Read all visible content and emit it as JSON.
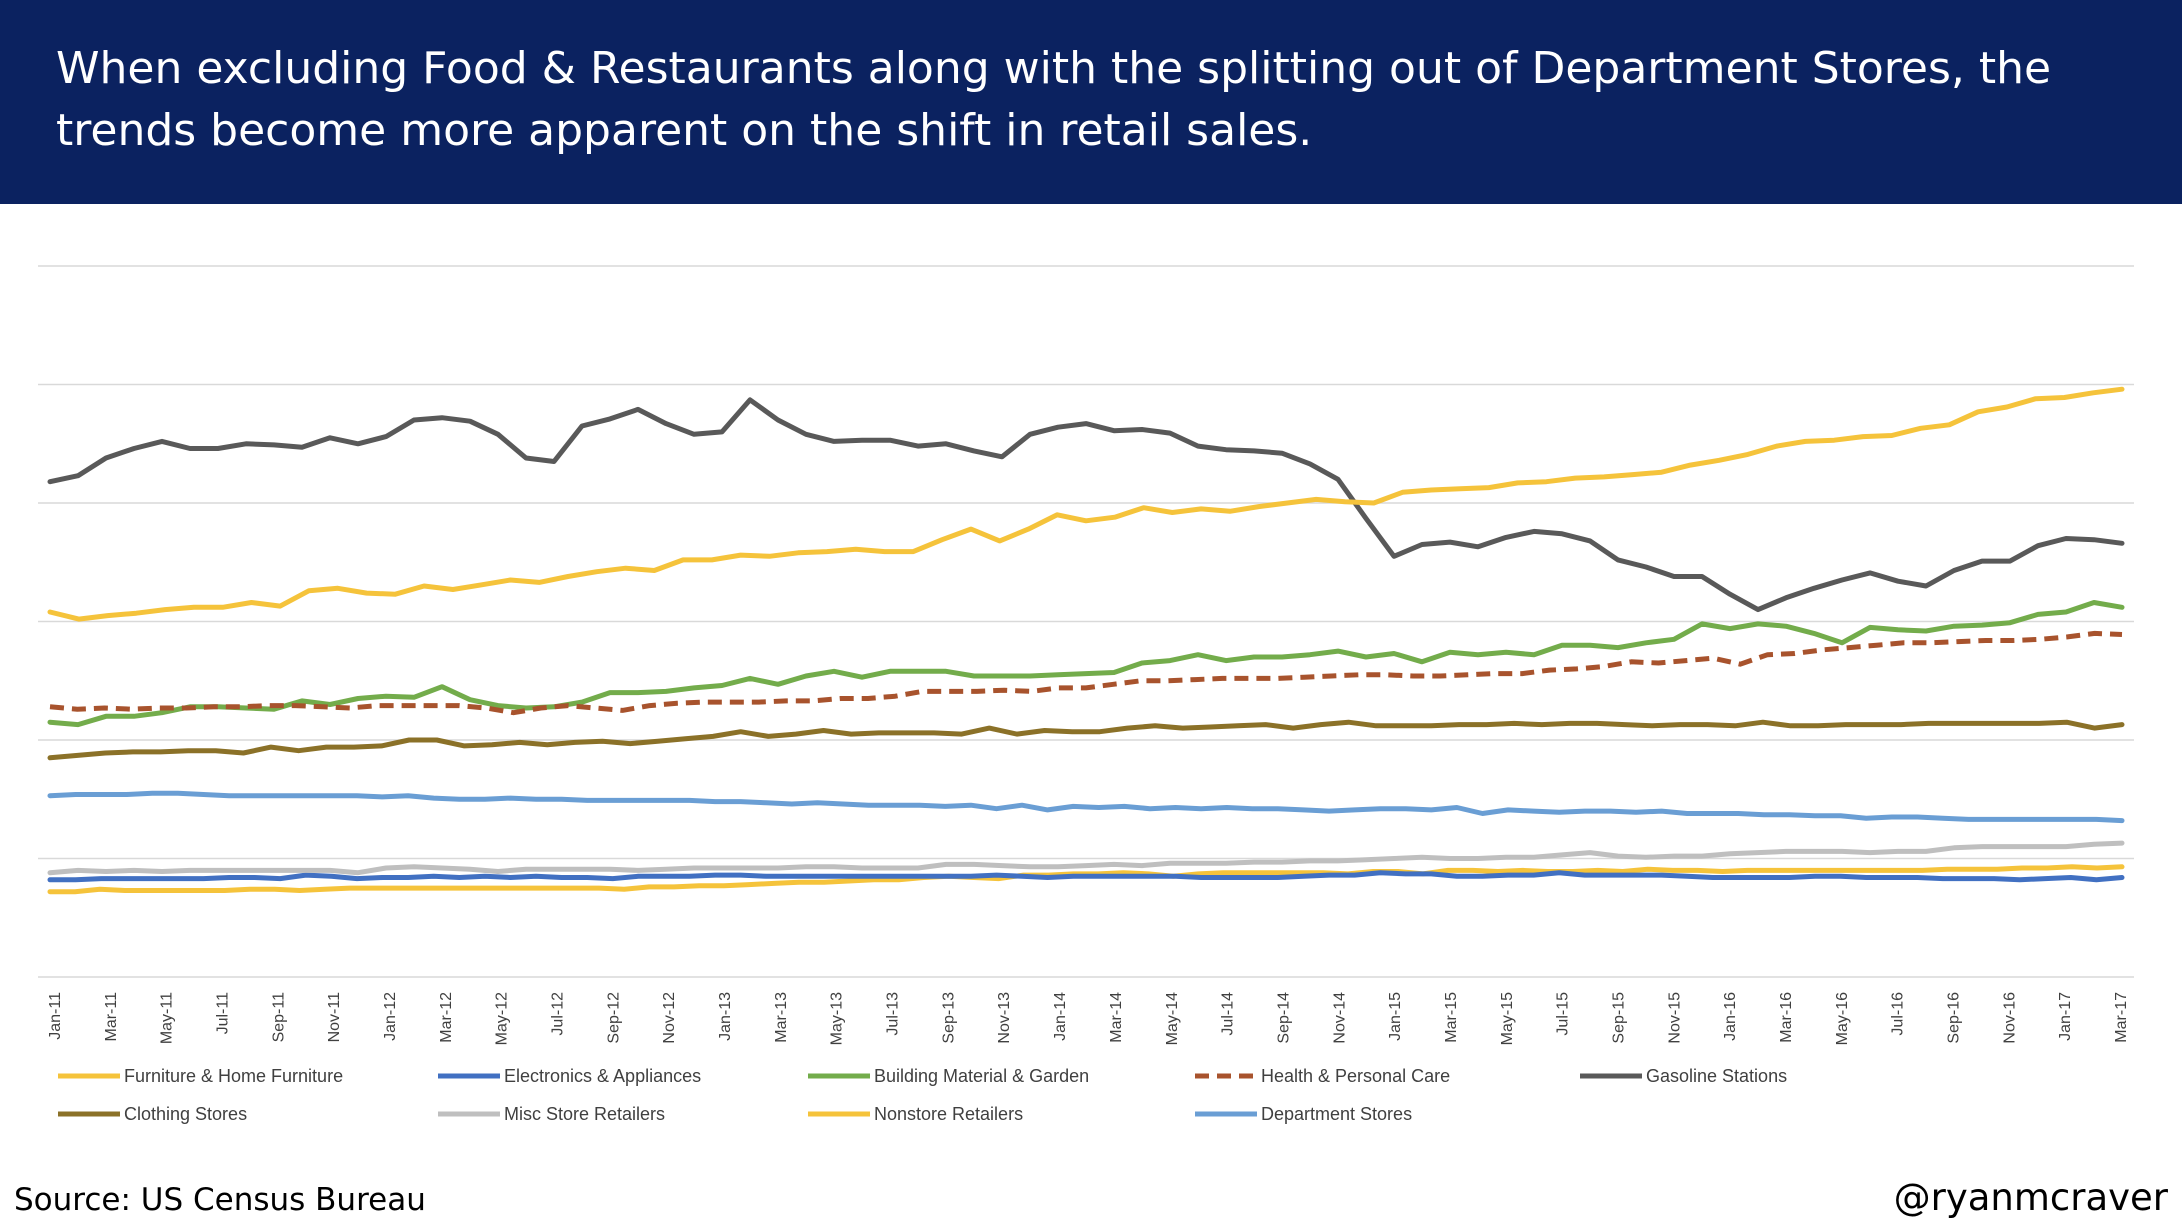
{
  "header": {
    "title": "When excluding Food & Restaurants along with the splitting out of Department Stores, the trends become more apparent on the shift in retail sales."
  },
  "footer": {
    "source": "Source: US Census Bureau",
    "handle": "@ryanmcraver"
  },
  "chart_data": {
    "type": "line",
    "ylim": [
      0,
      6
    ],
    "grid": true,
    "legend_position": "bottom",
    "x_labels": [
      "Jan-11",
      "Mar-11",
      "May-11",
      "Jul-11",
      "Sep-11",
      "Nov-11",
      "Jan-12",
      "Mar-12",
      "May-12",
      "Jul-12",
      "Sep-12",
      "Nov-12",
      "Jan-13",
      "Mar-13",
      "May-13",
      "Jul-13",
      "Sep-13",
      "Nov-13",
      "Jan-14",
      "Mar-14",
      "May-14",
      "Jul-14",
      "Sep-14",
      "Nov-14",
      "Jan-15",
      "Mar-15",
      "May-15",
      "Jul-15",
      "Sep-15",
      "Nov-15",
      "Jan-16",
      "Mar-16",
      "May-16",
      "Jul-16",
      "Sep-16",
      "Nov-16",
      "Jan-17",
      "Mar-17"
    ],
    "series": [
      {
        "name": "Furniture & Home Furniture",
        "color": "#f5c33b",
        "dashed": false,
        "values": [
          0.72,
          0.72,
          0.74,
          0.73,
          0.73,
          0.73,
          0.73,
          0.73,
          0.74,
          0.74,
          0.73,
          0.74,
          0.75,
          0.75,
          0.75,
          0.75,
          0.75,
          0.75,
          0.75,
          0.75,
          0.75,
          0.75,
          0.75,
          0.74,
          0.76,
          0.76,
          0.77,
          0.77,
          0.78,
          0.79,
          0.8,
          0.8,
          0.81,
          0.82,
          0.82,
          0.84,
          0.85,
          0.84,
          0.83,
          0.86,
          0.86,
          0.87,
          0.87,
          0.88,
          0.87,
          0.85,
          0.87,
          0.88,
          0.88,
          0.88,
          0.88,
          0.88,
          0.87,
          0.89,
          0.89,
          0.87,
          0.9,
          0.9,
          0.89,
          0.9,
          0.89,
          0.89,
          0.9,
          0.89,
          0.91,
          0.9,
          0.9,
          0.89,
          0.9,
          0.9,
          0.9,
          0.9,
          0.9,
          0.9,
          0.9,
          0.9,
          0.91,
          0.91,
          0.91,
          0.92,
          0.92,
          0.93,
          0.92,
          0.93
        ]
      },
      {
        "name": "Electronics & Appliances",
        "color": "#4170c2",
        "dashed": false,
        "values": [
          0.82,
          0.82,
          0.83,
          0.83,
          0.83,
          0.83,
          0.83,
          0.84,
          0.84,
          0.83,
          0.86,
          0.85,
          0.83,
          0.84,
          0.84,
          0.85,
          0.84,
          0.85,
          0.84,
          0.85,
          0.84,
          0.84,
          0.83,
          0.85,
          0.85,
          0.85,
          0.86,
          0.86,
          0.85,
          0.85,
          0.85,
          0.85,
          0.85,
          0.85,
          0.85,
          0.85,
          0.85,
          0.86,
          0.85,
          0.84,
          0.85,
          0.85,
          0.85,
          0.85,
          0.85,
          0.84,
          0.84,
          0.84,
          0.84,
          0.85,
          0.86,
          0.86,
          0.88,
          0.87,
          0.87,
          0.85,
          0.85,
          0.86,
          0.86,
          0.88,
          0.86,
          0.86,
          0.86,
          0.86,
          0.85,
          0.84,
          0.84,
          0.84,
          0.84,
          0.85,
          0.85,
          0.84,
          0.84,
          0.84,
          0.83,
          0.83,
          0.83,
          0.82,
          0.83,
          0.84,
          0.82,
          0.84
        ]
      },
      {
        "name": "Building Material & Garden",
        "color": "#73ac4b",
        "dashed": false,
        "values": [
          2.15,
          2.13,
          2.2,
          2.2,
          2.23,
          2.28,
          2.28,
          2.27,
          2.26,
          2.33,
          2.3,
          2.35,
          2.37,
          2.36,
          2.45,
          2.34,
          2.29,
          2.27,
          2.28,
          2.32,
          2.4,
          2.4,
          2.41,
          2.44,
          2.46,
          2.52,
          2.47,
          2.54,
          2.58,
          2.53,
          2.58,
          2.58,
          2.58,
          2.54,
          2.54,
          2.54,
          2.55,
          2.56,
          2.57,
          2.65,
          2.67,
          2.72,
          2.67,
          2.7,
          2.7,
          2.72,
          2.75,
          2.7,
          2.73,
          2.66,
          2.74,
          2.72,
          2.74,
          2.72,
          2.8,
          2.8,
          2.78,
          2.82,
          2.85,
          2.98,
          2.94,
          2.98,
          2.96,
          2.9,
          2.82,
          2.95,
          2.93,
          2.92,
          2.96,
          2.97,
          2.99,
          3.06,
          3.08,
          3.16,
          3.12
        ]
      },
      {
        "name": "Health & Personal Care",
        "color": "#a8532d",
        "dashed": true,
        "values": [
          2.28,
          2.26,
          2.27,
          2.26,
          2.27,
          2.27,
          2.28,
          2.28,
          2.29,
          2.29,
          2.28,
          2.27,
          2.29,
          2.29,
          2.29,
          2.29,
          2.27,
          2.23,
          2.27,
          2.29,
          2.27,
          2.25,
          2.29,
          2.31,
          2.32,
          2.32,
          2.32,
          2.33,
          2.33,
          2.35,
          2.35,
          2.37,
          2.41,
          2.41,
          2.41,
          2.42,
          2.41,
          2.44,
          2.44,
          2.47,
          2.5,
          2.5,
          2.51,
          2.52,
          2.52,
          2.52,
          2.53,
          2.54,
          2.55,
          2.55,
          2.54,
          2.54,
          2.55,
          2.56,
          2.56,
          2.59,
          2.6,
          2.62,
          2.66,
          2.65,
          2.67,
          2.69,
          2.64,
          2.72,
          2.73,
          2.76,
          2.78,
          2.8,
          2.82,
          2.82,
          2.83,
          2.84,
          2.84,
          2.85,
          2.87,
          2.9,
          2.89
        ]
      },
      {
        "name": "Gasoline Stations",
        "color": "#595959",
        "dashed": false,
        "values": [
          4.18,
          4.23,
          4.38,
          4.46,
          4.52,
          4.46,
          4.46,
          4.5,
          4.49,
          4.47,
          4.55,
          4.5,
          4.56,
          4.7,
          4.72,
          4.69,
          4.58,
          4.38,
          4.35,
          4.65,
          4.71,
          4.79,
          4.67,
          4.58,
          4.6,
          4.87,
          4.7,
          4.58,
          4.52,
          4.53,
          4.53,
          4.48,
          4.5,
          4.44,
          4.39,
          4.58,
          4.64,
          4.67,
          4.61,
          4.62,
          4.59,
          4.48,
          4.45,
          4.44,
          4.42,
          4.33,
          4.2,
          3.87,
          3.55,
          3.65,
          3.67,
          3.63,
          3.71,
          3.76,
          3.74,
          3.68,
          3.52,
          3.46,
          3.38,
          3.38,
          3.23,
          3.1,
          3.2,
          3.28,
          3.35,
          3.41,
          3.34,
          3.3,
          3.43,
          3.51,
          3.51,
          3.64,
          3.7,
          3.69,
          3.66
        ]
      },
      {
        "name": "Clothing Stores",
        "color": "#8b7128",
        "dashed": false,
        "values": [
          1.85,
          1.87,
          1.89,
          1.9,
          1.9,
          1.91,
          1.91,
          1.89,
          1.94,
          1.91,
          1.94,
          1.94,
          1.95,
          2.0,
          2.0,
          1.95,
          1.96,
          1.98,
          1.96,
          1.98,
          1.99,
          1.97,
          1.99,
          2.01,
          2.03,
          2.07,
          2.03,
          2.05,
          2.08,
          2.05,
          2.06,
          2.06,
          2.06,
          2.05,
          2.1,
          2.05,
          2.08,
          2.07,
          2.07,
          2.1,
          2.12,
          2.1,
          2.11,
          2.12,
          2.13,
          2.1,
          2.13,
          2.15,
          2.12,
          2.12,
          2.12,
          2.13,
          2.13,
          2.14,
          2.13,
          2.14,
          2.14,
          2.13,
          2.12,
          2.13,
          2.13,
          2.12,
          2.15,
          2.12,
          2.12,
          2.13,
          2.13,
          2.13,
          2.14,
          2.14,
          2.14,
          2.14,
          2.14,
          2.15,
          2.1,
          2.13
        ]
      },
      {
        "name": "Misc Store Retailers",
        "color": "#bfbfbf",
        "dashed": false,
        "values": [
          0.88,
          0.9,
          0.89,
          0.9,
          0.89,
          0.9,
          0.9,
          0.9,
          0.9,
          0.9,
          0.9,
          0.88,
          0.92,
          0.93,
          0.92,
          0.91,
          0.89,
          0.91,
          0.91,
          0.91,
          0.91,
          0.9,
          0.91,
          0.92,
          0.92,
          0.92,
          0.92,
          0.93,
          0.93,
          0.92,
          0.92,
          0.92,
          0.95,
          0.95,
          0.94,
          0.93,
          0.93,
          0.94,
          0.95,
          0.94,
          0.96,
          0.96,
          0.96,
          0.97,
          0.97,
          0.98,
          0.98,
          0.99,
          1.0,
          1.01,
          1.0,
          1.0,
          1.01,
          1.01,
          1.03,
          1.05,
          1.02,
          1.01,
          1.02,
          1.02,
          1.04,
          1.05,
          1.06,
          1.06,
          1.06,
          1.05,
          1.06,
          1.06,
          1.09,
          1.1,
          1.1,
          1.1,
          1.1,
          1.12,
          1.13
        ]
      },
      {
        "name": "Nonstore Retailers",
        "color": "#f5c33b",
        "dashed": false,
        "values": [
          3.08,
          3.02,
          3.05,
          3.07,
          3.1,
          3.12,
          3.12,
          3.16,
          3.13,
          3.26,
          3.28,
          3.24,
          3.23,
          3.3,
          3.27,
          3.31,
          3.35,
          3.33,
          3.38,
          3.42,
          3.45,
          3.43,
          3.52,
          3.52,
          3.56,
          3.55,
          3.58,
          3.59,
          3.61,
          3.59,
          3.59,
          3.69,
          3.78,
          3.68,
          3.78,
          3.9,
          3.85,
          3.88,
          3.96,
          3.92,
          3.95,
          3.93,
          3.97,
          4.0,
          4.03,
          4.01,
          4.0,
          4.09,
          4.11,
          4.12,
          4.13,
          4.17,
          4.18,
          4.21,
          4.22,
          4.24,
          4.26,
          4.32,
          4.36,
          4.41,
          4.48,
          4.52,
          4.53,
          4.56,
          4.57,
          4.63,
          4.66,
          4.77,
          4.81,
          4.88,
          4.89,
          4.93,
          4.96
        ]
      },
      {
        "name": "Department Stores",
        "color": "#6a9ed4",
        "dashed": false,
        "values": [
          1.53,
          1.54,
          1.54,
          1.54,
          1.55,
          1.55,
          1.54,
          1.53,
          1.53,
          1.53,
          1.53,
          1.53,
          1.53,
          1.52,
          1.53,
          1.51,
          1.5,
          1.5,
          1.51,
          1.5,
          1.5,
          1.49,
          1.49,
          1.49,
          1.49,
          1.49,
          1.48,
          1.48,
          1.47,
          1.46,
          1.47,
          1.46,
          1.45,
          1.45,
          1.45,
          1.44,
          1.45,
          1.42,
          1.45,
          1.41,
          1.44,
          1.43,
          1.44,
          1.42,
          1.43,
          1.42,
          1.43,
          1.42,
          1.42,
          1.41,
          1.4,
          1.41,
          1.42,
          1.42,
          1.41,
          1.43,
          1.38,
          1.41,
          1.4,
          1.39,
          1.4,
          1.4,
          1.39,
          1.4,
          1.38,
          1.38,
          1.38,
          1.37,
          1.37,
          1.36,
          1.36,
          1.34,
          1.35,
          1.35,
          1.34,
          1.33,
          1.33,
          1.33,
          1.33,
          1.33,
          1.33,
          1.32
        ]
      }
    ]
  }
}
